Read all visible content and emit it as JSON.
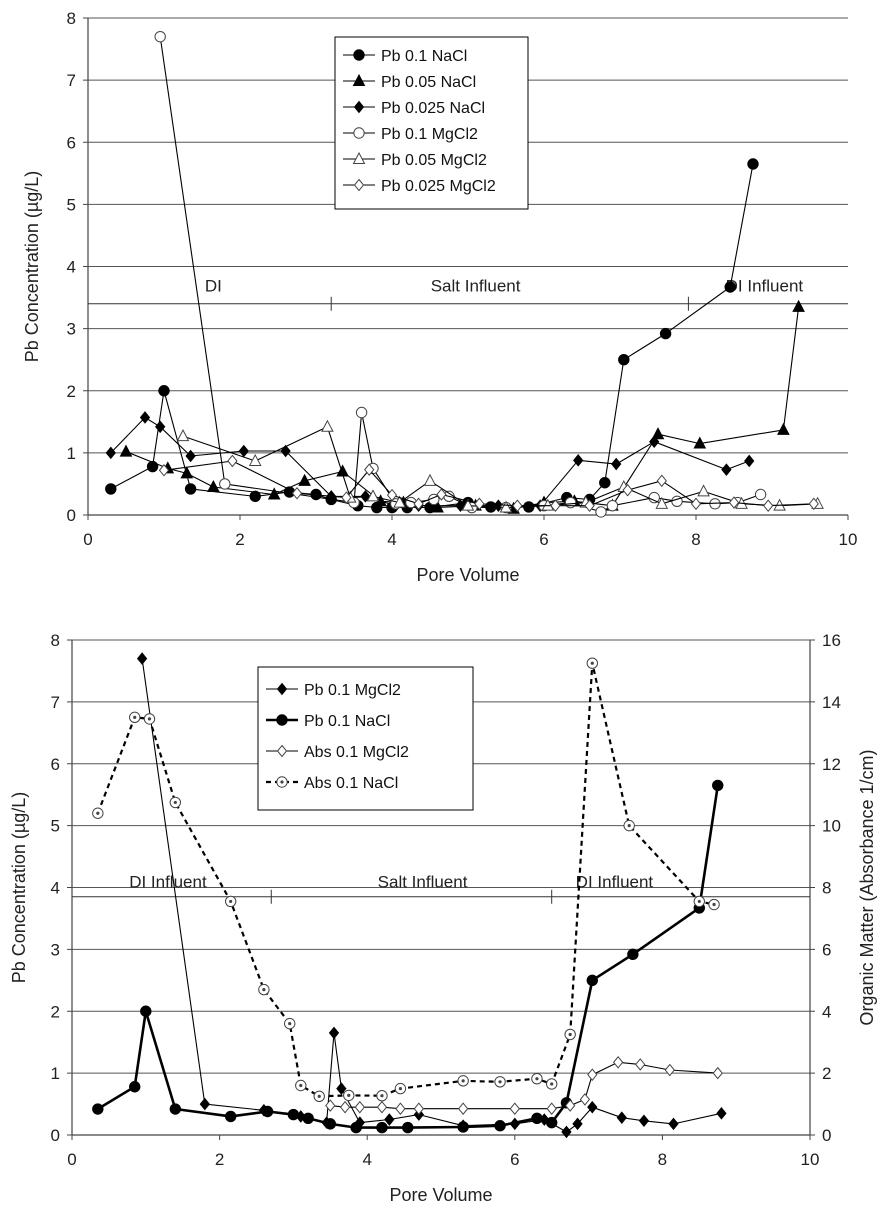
{
  "chart_data": [
    {
      "type": "line",
      "xlabel": "Pore Volume",
      "ylabel": "Pb Concentration (µg/L)",
      "xlim": [
        0,
        10
      ],
      "ylim": [
        0,
        8
      ],
      "xticks": [
        "0",
        "2",
        "4",
        "6",
        "8",
        "10"
      ],
      "yticks": [
        "0",
        "1",
        "2",
        "3",
        "4",
        "5",
        "6",
        "7",
        "8"
      ],
      "grid": "horizontal",
      "legend_position": "top-center",
      "annotations": [
        {
          "text": "DI",
          "x": 1.65,
          "y": 3.6
        },
        {
          "text": "Salt Influent",
          "x": 5.1,
          "y": 3.6
        },
        {
          "text": "DI Influent",
          "x": 8.9,
          "y": 3.6
        }
      ],
      "phase_line": {
        "y": 3.4,
        "dividers": [
          3.2,
          7.9
        ]
      },
      "series": [
        {
          "name": "Pb 0.1 NaCl",
          "marker": "circle-filled",
          "x": [
            0.3,
            0.85,
            1.0,
            1.35,
            2.2,
            2.65,
            3.0,
            3.2,
            3.55,
            3.8,
            4.0,
            4.2,
            4.5,
            5.0,
            5.3,
            5.8,
            6.3,
            6.6,
            6.8,
            7.05,
            7.6,
            8.45,
            8.75
          ],
          "y": [
            0.42,
            0.78,
            2.0,
            0.42,
            0.3,
            0.37,
            0.33,
            0.25,
            0.15,
            0.12,
            0.12,
            0.12,
            0.12,
            0.2,
            0.13,
            0.13,
            0.28,
            0.25,
            0.52,
            2.5,
            2.92,
            3.67,
            5.65
          ]
        },
        {
          "name": "Pb 0.05 NaCl",
          "marker": "triangle-filled",
          "x": [
            0.5,
            1.05,
            1.3,
            1.65,
            2.45,
            2.85,
            3.35,
            3.85,
            4.15,
            4.6,
            5.1,
            5.6,
            6.0,
            6.4,
            6.9,
            7.5,
            8.05,
            9.15,
            9.35
          ],
          "y": [
            1.02,
            0.75,
            0.67,
            0.45,
            0.33,
            0.55,
            0.7,
            0.22,
            0.2,
            0.12,
            0.15,
            0.1,
            0.2,
            0.22,
            0.15,
            1.3,
            1.15,
            1.37,
            3.35
          ]
        },
        {
          "name": "Pb 0.025 NaCl",
          "marker": "diamond-filled",
          "x": [
            0.3,
            0.75,
            0.95,
            1.35,
            2.05,
            2.6,
            3.2,
            3.65,
            4.05,
            4.35,
            4.9,
            5.4,
            5.95,
            6.45,
            6.95,
            7.45,
            8.4,
            8.7
          ],
          "y": [
            1.0,
            1.57,
            1.42,
            0.95,
            1.03,
            1.03,
            0.3,
            0.3,
            0.15,
            0.15,
            0.15,
            0.15,
            0.15,
            0.88,
            0.82,
            1.18,
            0.73,
            0.87
          ]
        },
        {
          "name": "Pb 0.1 MgCl2",
          "marker": "circle-open",
          "x": [
            0.95,
            1.8,
            3.5,
            3.6,
            3.75,
            4.05,
            4.25,
            4.55,
            4.75,
            5.05,
            5.5,
            6.0,
            6.35,
            6.75,
            6.9,
            7.45,
            7.75,
            8.25,
            8.55,
            8.85
          ],
          "y": [
            7.7,
            0.5,
            0.2,
            1.65,
            0.75,
            0.18,
            0.2,
            0.25,
            0.3,
            0.12,
            0.12,
            0.15,
            0.2,
            0.05,
            0.15,
            0.28,
            0.22,
            0.18,
            0.2,
            0.33
          ]
        },
        {
          "name": "Pb 0.05 MgCl2",
          "marker": "triangle-open",
          "x": [
            1.25,
            2.2,
            3.15,
            3.45,
            3.75,
            4.1,
            4.5,
            5.0,
            5.5,
            6.05,
            6.55,
            7.05,
            7.55,
            8.1,
            8.6,
            9.1,
            9.6
          ],
          "y": [
            1.27,
            0.87,
            1.42,
            0.28,
            0.3,
            0.2,
            0.55,
            0.15,
            0.12,
            0.15,
            0.2,
            0.45,
            0.18,
            0.38,
            0.18,
            0.15,
            0.18
          ]
        },
        {
          "name": "Pb 0.025 MgCl2",
          "marker": "diamond-open",
          "x": [
            1.0,
            1.9,
            2.75,
            3.4,
            3.7,
            4.0,
            4.35,
            4.65,
            5.15,
            5.65,
            6.15,
            6.6,
            7.1,
            7.55,
            8.0,
            8.5,
            8.95,
            9.55
          ],
          "y": [
            0.72,
            0.87,
            0.35,
            0.28,
            0.73,
            0.32,
            0.18,
            0.33,
            0.18,
            0.15,
            0.15,
            0.15,
            0.4,
            0.55,
            0.18,
            0.2,
            0.15,
            0.18
          ]
        }
      ]
    },
    {
      "type": "line",
      "xlabel": "Pore Volume",
      "ylabel": "Pb Concentration (µg/L)",
      "y2label": "Organic Matter (Absorbance 1/cm)",
      "xlim": [
        0,
        10
      ],
      "ylim": [
        0,
        8
      ],
      "y2lim": [
        0,
        16
      ],
      "xticks": [
        "0",
        "2",
        "4",
        "6",
        "8",
        "10"
      ],
      "yticks": [
        "0",
        "1",
        "2",
        "3",
        "4",
        "5",
        "6",
        "7",
        "8"
      ],
      "y2ticks": [
        "0",
        "2",
        "4",
        "6",
        "8",
        "10",
        "12",
        "14",
        "16"
      ],
      "grid": "horizontal",
      "legend_position": "top-center",
      "annotations": [
        {
          "text": "DI Influent",
          "x": 1.3,
          "y": 4.0
        },
        {
          "text": "Salt Influent",
          "x": 4.75,
          "y": 4.0
        },
        {
          "text": "DI Influent",
          "x": 7.35,
          "y": 4.0
        }
      ],
      "phase_line": {
        "y": 3.85,
        "dividers": [
          2.7,
          6.5
        ]
      },
      "series": [
        {
          "name": "Pb 0.1 MgCl2",
          "axis": "left",
          "marker": "diamond-filled",
          "style": "thin",
          "x": [
            0.95,
            1.8,
            2.6,
            3.1,
            3.45,
            3.55,
            3.65,
            3.9,
            4.3,
            4.7,
            5.3,
            6.0,
            6.4,
            6.7,
            6.85,
            7.05,
            7.45,
            7.75,
            8.15,
            8.8
          ],
          "y": [
            7.7,
            0.5,
            0.4,
            0.3,
            0.2,
            1.65,
            0.75,
            0.2,
            0.25,
            0.33,
            0.15,
            0.18,
            0.25,
            0.05,
            0.18,
            0.45,
            0.28,
            0.23,
            0.18,
            0.35
          ]
        },
        {
          "name": "Pb 0.1 NaCl",
          "axis": "left",
          "marker": "circle-filled",
          "style": "thick",
          "x": [
            0.35,
            0.85,
            1.0,
            1.4,
            2.15,
            2.65,
            3.0,
            3.2,
            3.5,
            3.85,
            4.2,
            4.55,
            5.3,
            5.8,
            6.3,
            6.5,
            6.7,
            7.05,
            7.6,
            8.5,
            8.75
          ],
          "y": [
            0.42,
            0.78,
            2.0,
            0.42,
            0.3,
            0.38,
            0.33,
            0.27,
            0.18,
            0.12,
            0.12,
            0.12,
            0.13,
            0.15,
            0.27,
            0.2,
            0.52,
            2.5,
            2.92,
            3.67,
            5.65
          ]
        },
        {
          "name": "Abs 0.1 MgCl2",
          "axis": "right",
          "marker": "diamond-open",
          "style": "thin",
          "x": [
            3.5,
            3.7,
            3.9,
            4.2,
            4.45,
            4.7,
            5.3,
            6.0,
            6.5,
            6.75,
            6.95,
            7.05,
            7.4,
            7.7,
            8.1,
            8.75
          ],
          "y": [
            0.95,
            0.9,
            0.9,
            0.9,
            0.85,
            0.85,
            0.85,
            0.85,
            0.85,
            0.95,
            1.15,
            1.95,
            2.35,
            2.28,
            2.1,
            2.0
          ]
        },
        {
          "name": "Abs 0.1 NaCl",
          "axis": "right",
          "marker": "circle-dotted",
          "style": "dashed",
          "x": [
            0.35,
            0.85,
            1.05,
            1.4,
            2.15,
            2.6,
            2.95,
            3.1,
            3.35,
            3.75,
            4.2,
            4.45,
            5.3,
            5.8,
            6.3,
            6.5,
            6.75,
            7.05,
            7.55,
            8.5,
            8.7
          ],
          "y": [
            10.4,
            13.5,
            13.45,
            10.75,
            7.55,
            4.7,
            3.6,
            1.6,
            1.25,
            1.28,
            1.27,
            1.5,
            1.75,
            1.72,
            1.82,
            1.65,
            3.25,
            15.25,
            10.0,
            7.55,
            7.45
          ]
        }
      ]
    }
  ]
}
